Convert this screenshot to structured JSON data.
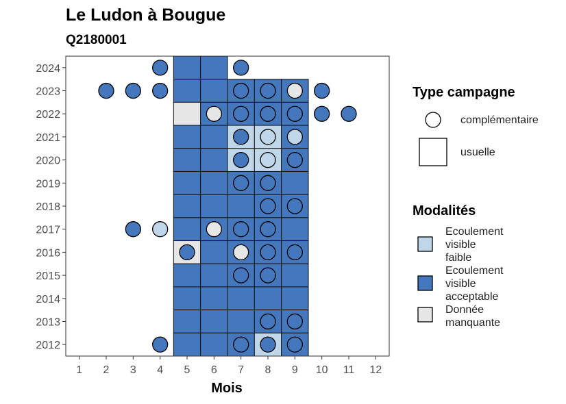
{
  "chart_data": {
    "type": "heatmap",
    "title": "Le Ludon à Bougue",
    "subtitle": "Q2180001",
    "xlabel": "Mois",
    "x_ticks": [
      1,
      2,
      3,
      4,
      5,
      6,
      7,
      8,
      9,
      10,
      11,
      12
    ],
    "y_ticks": [
      2012,
      2013,
      2014,
      2015,
      2016,
      2017,
      2018,
      2019,
      2020,
      2021,
      2022,
      2023,
      2024
    ],
    "xlim": [
      0.5,
      12.5
    ],
    "ylim": [
      2011.5,
      2024.5
    ],
    "grid": false,
    "legend_position": "right",
    "colors": {
      "faible": "#bfd7e8",
      "acceptable": "#4477bb",
      "manquante": "#e6e6e6"
    },
    "legends": [
      {
        "title": "Type campagne",
        "entries": [
          {
            "key": "complementaire",
            "label": "complémentaire",
            "shape": "circle"
          },
          {
            "key": "usuelle",
            "label": "usuelle",
            "shape": "square"
          }
        ]
      },
      {
        "title": "Modalités",
        "entries": [
          {
            "key": "faible",
            "lines": [
              "Ecoulement",
              "visible",
              "faible"
            ]
          },
          {
            "key": "acceptable",
            "lines": [
              "Ecoulement",
              "visible",
              "acceptable"
            ]
          },
          {
            "key": "manquante",
            "lines": [
              "Donnée",
              "manquante"
            ]
          }
        ]
      }
    ],
    "usuelle": [
      {
        "year": 2024,
        "month": 5,
        "m": "acceptable"
      },
      {
        "year": 2024,
        "month": 6,
        "m": "acceptable"
      },
      {
        "year": 2023,
        "month": 5,
        "m": "acceptable"
      },
      {
        "year": 2023,
        "month": 6,
        "m": "acceptable"
      },
      {
        "year": 2023,
        "month": 7,
        "m": "acceptable"
      },
      {
        "year": 2023,
        "month": 8,
        "m": "acceptable"
      },
      {
        "year": 2023,
        "month": 9,
        "m": "acceptable"
      },
      {
        "year": 2022,
        "month": 5,
        "m": "manquante"
      },
      {
        "year": 2022,
        "month": 6,
        "m": "acceptable"
      },
      {
        "year": 2022,
        "month": 7,
        "m": "acceptable"
      },
      {
        "year": 2022,
        "month": 8,
        "m": "acceptable"
      },
      {
        "year": 2022,
        "month": 9,
        "m": "acceptable"
      },
      {
        "year": 2021,
        "month": 5,
        "m": "acceptable"
      },
      {
        "year": 2021,
        "month": 6,
        "m": "acceptable"
      },
      {
        "year": 2021,
        "month": 7,
        "m": "faible"
      },
      {
        "year": 2021,
        "month": 8,
        "m": "faible"
      },
      {
        "year": 2021,
        "month": 9,
        "m": "acceptable"
      },
      {
        "year": 2020,
        "month": 5,
        "m": "acceptable"
      },
      {
        "year": 2020,
        "month": 6,
        "m": "acceptable"
      },
      {
        "year": 2020,
        "month": 7,
        "m": "faible"
      },
      {
        "year": 2020,
        "month": 8,
        "m": "faible"
      },
      {
        "year": 2020,
        "month": 9,
        "m": "acceptable"
      },
      {
        "year": 2019,
        "month": 5,
        "m": "acceptable"
      },
      {
        "year": 2019,
        "month": 6,
        "m": "acceptable"
      },
      {
        "year": 2019,
        "month": 7,
        "m": "acceptable"
      },
      {
        "year": 2019,
        "month": 8,
        "m": "acceptable"
      },
      {
        "year": 2019,
        "month": 9,
        "m": "acceptable"
      },
      {
        "year": 2018,
        "month": 5,
        "m": "acceptable"
      },
      {
        "year": 2018,
        "month": 6,
        "m": "acceptable"
      },
      {
        "year": 2018,
        "month": 7,
        "m": "acceptable"
      },
      {
        "year": 2018,
        "month": 8,
        "m": "acceptable"
      },
      {
        "year": 2018,
        "month": 9,
        "m": "acceptable"
      },
      {
        "year": 2017,
        "month": 5,
        "m": "acceptable"
      },
      {
        "year": 2017,
        "month": 6,
        "m": "acceptable"
      },
      {
        "year": 2017,
        "month": 7,
        "m": "acceptable"
      },
      {
        "year": 2017,
        "month": 8,
        "m": "acceptable"
      },
      {
        "year": 2017,
        "month": 9,
        "m": "acceptable"
      },
      {
        "year": 2016,
        "month": 5,
        "m": "manquante"
      },
      {
        "year": 2016,
        "month": 6,
        "m": "acceptable"
      },
      {
        "year": 2016,
        "month": 7,
        "m": "acceptable"
      },
      {
        "year": 2016,
        "month": 8,
        "m": "acceptable"
      },
      {
        "year": 2016,
        "month": 9,
        "m": "acceptable"
      },
      {
        "year": 2015,
        "month": 5,
        "m": "acceptable"
      },
      {
        "year": 2015,
        "month": 6,
        "m": "acceptable"
      },
      {
        "year": 2015,
        "month": 7,
        "m": "acceptable"
      },
      {
        "year": 2015,
        "month": 8,
        "m": "acceptable"
      },
      {
        "year": 2015,
        "month": 9,
        "m": "acceptable"
      },
      {
        "year": 2014,
        "month": 5,
        "m": "acceptable"
      },
      {
        "year": 2014,
        "month": 6,
        "m": "acceptable"
      },
      {
        "year": 2014,
        "month": 7,
        "m": "acceptable"
      },
      {
        "year": 2014,
        "month": 8,
        "m": "acceptable"
      },
      {
        "year": 2014,
        "month": 9,
        "m": "acceptable"
      },
      {
        "year": 2013,
        "month": 5,
        "m": "acceptable"
      },
      {
        "year": 2013,
        "month": 6,
        "m": "acceptable"
      },
      {
        "year": 2013,
        "month": 7,
        "m": "acceptable"
      },
      {
        "year": 2013,
        "month": 8,
        "m": "acceptable"
      },
      {
        "year": 2013,
        "month": 9,
        "m": "acceptable"
      },
      {
        "year": 2012,
        "month": 5,
        "m": "acceptable"
      },
      {
        "year": 2012,
        "month": 6,
        "m": "acceptable"
      },
      {
        "year": 2012,
        "month": 7,
        "m": "acceptable"
      },
      {
        "year": 2012,
        "month": 8,
        "m": "faible"
      },
      {
        "year": 2012,
        "month": 9,
        "m": "acceptable"
      }
    ],
    "complementaire": [
      {
        "year": 2024,
        "month": 4,
        "m": "acceptable"
      },
      {
        "year": 2024,
        "month": 7,
        "m": "acceptable"
      },
      {
        "year": 2023,
        "month": 2,
        "m": "acceptable"
      },
      {
        "year": 2023,
        "month": 3,
        "m": "acceptable"
      },
      {
        "year": 2023,
        "month": 4,
        "m": "acceptable"
      },
      {
        "year": 2023,
        "month": 7,
        "m": "acceptable"
      },
      {
        "year": 2023,
        "month": 8,
        "m": "acceptable"
      },
      {
        "year": 2023,
        "month": 9,
        "m": "manquante"
      },
      {
        "year": 2023,
        "month": 10,
        "m": "acceptable"
      },
      {
        "year": 2022,
        "month": 6,
        "m": "manquante"
      },
      {
        "year": 2022,
        "month": 7,
        "m": "acceptable"
      },
      {
        "year": 2022,
        "month": 8,
        "m": "acceptable"
      },
      {
        "year": 2022,
        "month": 9,
        "m": "acceptable"
      },
      {
        "year": 2022,
        "month": 10,
        "m": "acceptable"
      },
      {
        "year": 2022,
        "month": 11,
        "m": "acceptable"
      },
      {
        "year": 2021,
        "month": 7,
        "m": "acceptable"
      },
      {
        "year": 2021,
        "month": 8,
        "m": "faible"
      },
      {
        "year": 2021,
        "month": 9,
        "m": "faible"
      },
      {
        "year": 2020,
        "month": 7,
        "m": "acceptable"
      },
      {
        "year": 2020,
        "month": 8,
        "m": "faible"
      },
      {
        "year": 2020,
        "month": 9,
        "m": "acceptable"
      },
      {
        "year": 2019,
        "month": 7,
        "m": "acceptable"
      },
      {
        "year": 2019,
        "month": 8,
        "m": "acceptable"
      },
      {
        "year": 2018,
        "month": 8,
        "m": "acceptable"
      },
      {
        "year": 2018,
        "month": 9,
        "m": "acceptable"
      },
      {
        "year": 2017,
        "month": 3,
        "m": "acceptable"
      },
      {
        "year": 2017,
        "month": 4,
        "m": "faible"
      },
      {
        "year": 2017,
        "month": 6,
        "m": "manquante"
      },
      {
        "year": 2017,
        "month": 7,
        "m": "acceptable"
      },
      {
        "year": 2017,
        "month": 8,
        "m": "acceptable"
      },
      {
        "year": 2016,
        "month": 5,
        "m": "acceptable"
      },
      {
        "year": 2016,
        "month": 7,
        "m": "manquante"
      },
      {
        "year": 2016,
        "month": 8,
        "m": "acceptable"
      },
      {
        "year": 2016,
        "month": 9,
        "m": "acceptable"
      },
      {
        "year": 2015,
        "month": 7,
        "m": "acceptable"
      },
      {
        "year": 2015,
        "month": 8,
        "m": "acceptable"
      },
      {
        "year": 2013,
        "month": 8,
        "m": "acceptable"
      },
      {
        "year": 2013,
        "month": 9,
        "m": "acceptable"
      },
      {
        "year": 2012,
        "month": 4,
        "m": "acceptable"
      },
      {
        "year": 2012,
        "month": 7,
        "m": "acceptable"
      },
      {
        "year": 2012,
        "month": 8,
        "m": "acceptable"
      },
      {
        "year": 2012,
        "month": 9,
        "m": "acceptable"
      }
    ]
  }
}
